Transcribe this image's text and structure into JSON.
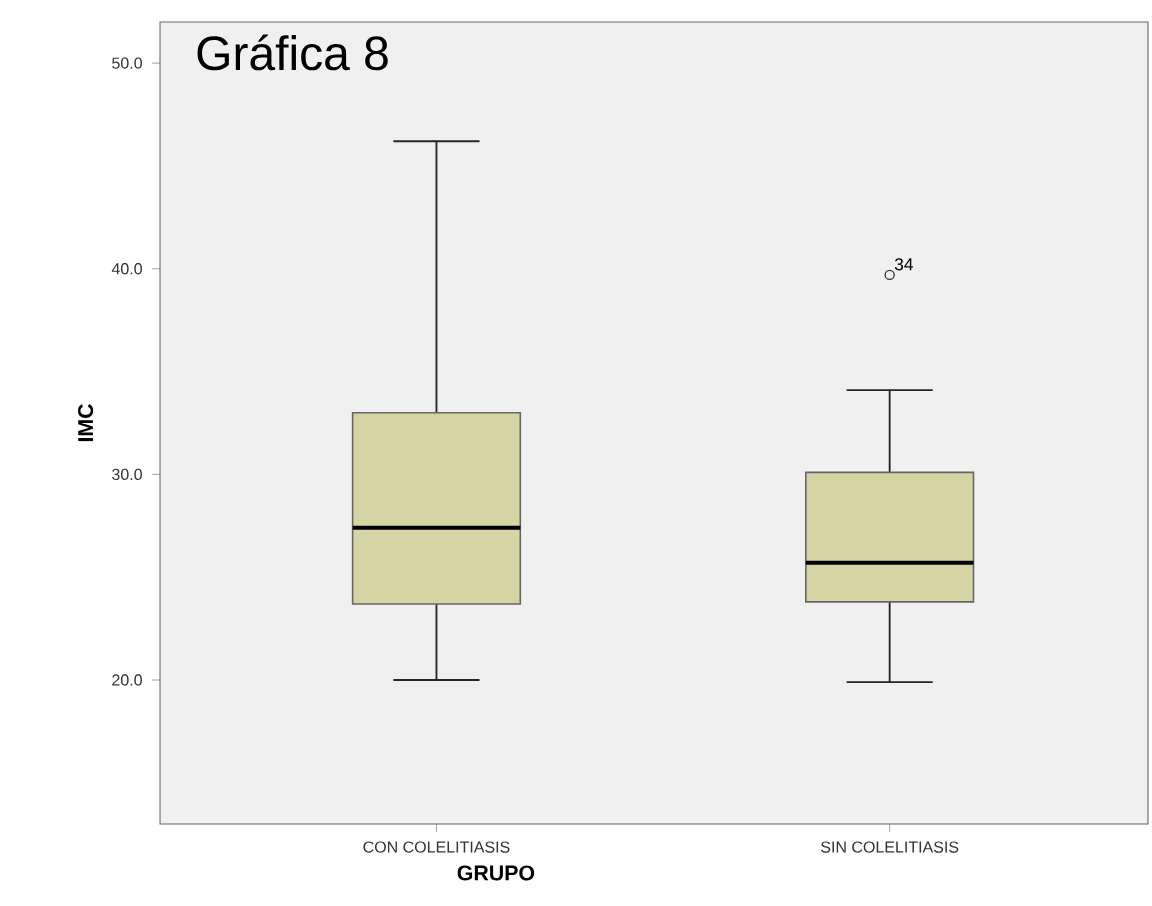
{
  "chart_data": {
    "type": "box",
    "title": "Gráfica 8",
    "xlabel": "GRUPO",
    "ylabel": "IMC",
    "categories": [
      "CON COLELITIASIS",
      "SIN COLELITIASIS"
    ],
    "boxes": [
      {
        "low": 20.0,
        "q1": 23.7,
        "median": 27.4,
        "q3": 33.0,
        "high": 46.2
      },
      {
        "low": 19.9,
        "q1": 23.8,
        "median": 25.7,
        "q3": 30.1,
        "high": 34.1,
        "outliers": [
          39.7
        ]
      }
    ],
    "color": "#d6d3a5",
    "ylim": [
      13.0,
      52.0
    ],
    "yticks": [
      {
        "value": 20,
        "label": "20.0"
      },
      {
        "value": 30,
        "label": "30.0"
      },
      {
        "value": 40,
        "label": "40.0"
      },
      {
        "value": 50,
        "label": "50.0"
      }
    ],
    "annotations": [
      "34"
    ]
  }
}
